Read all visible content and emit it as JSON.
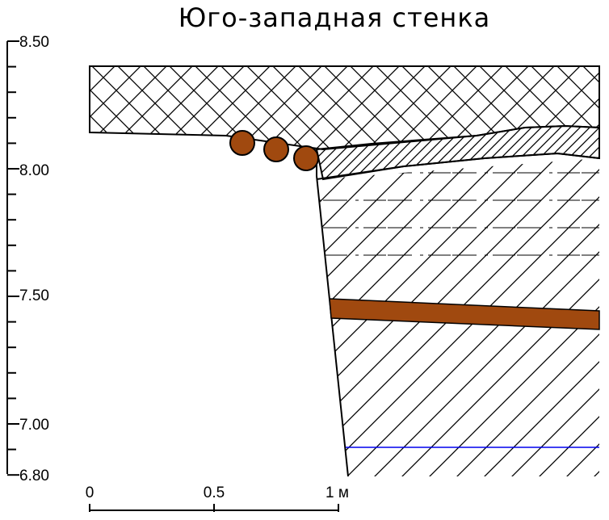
{
  "title": "Юго-западная стенка",
  "elevation_axis": {
    "ticks": [
      "8.50",
      "8.00",
      "7.50",
      "7.00",
      "6.80"
    ]
  },
  "scale_bar": {
    "ticks": [
      "0",
      "0.5",
      "1 м"
    ]
  },
  "colors": {
    "brick": "#A0490F",
    "water_line": "#0000EE",
    "outline": "#000000"
  }
}
